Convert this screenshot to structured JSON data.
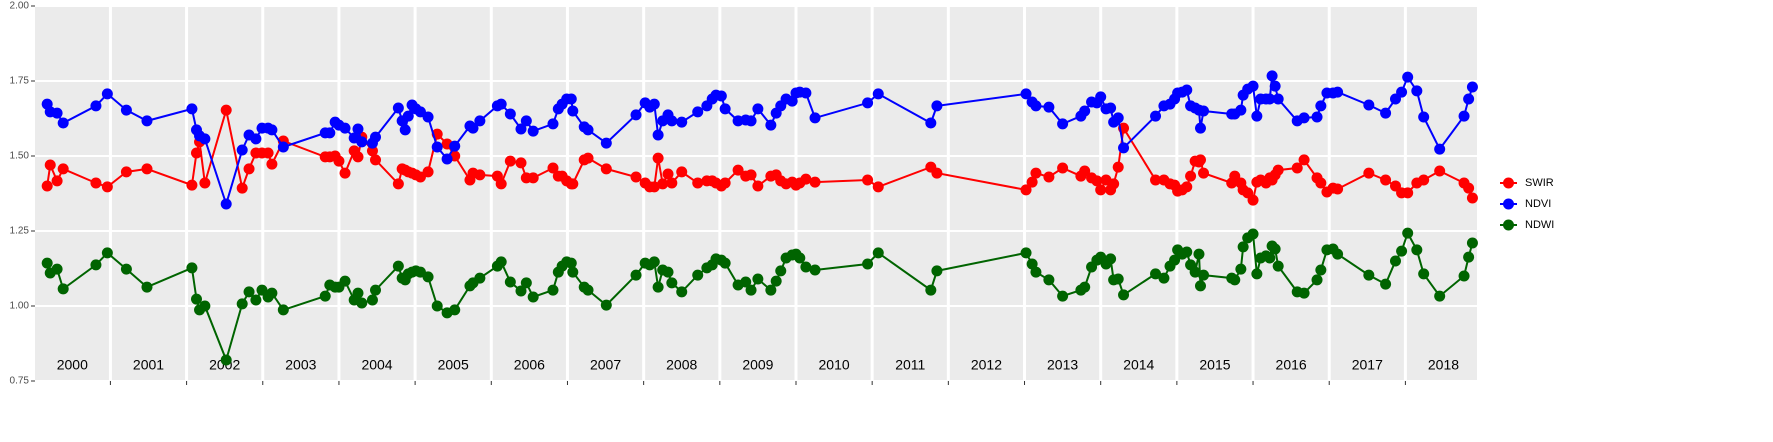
{
  "chart_data": {
    "type": "line",
    "x": [
      2000.17,
      2000.21,
      2000.3,
      2000.38,
      2000.81,
      2000.96,
      2001.21,
      2001.48,
      2002.07,
      2002.13,
      2002.17,
      2002.24,
      2002.52,
      2002.73,
      2002.82,
      2002.91,
      2002.99,
      2003.07,
      2003.12,
      2003.27,
      2003.82,
      2003.88,
      2003.95,
      2004.0,
      2004.08,
      2004.2,
      2004.25,
      2004.3,
      2004.44,
      2004.48,
      2004.78,
      2004.83,
      2004.87,
      2004.91,
      2004.96,
      2005.01,
      2005.07,
      2005.17,
      2005.29,
      2005.42,
      2005.52,
      2005.72,
      2005.76,
      2005.85,
      2006.08,
      2006.13,
      2006.25,
      2006.39,
      2006.46,
      2006.55,
      2006.81,
      2006.88,
      2006.93,
      2006.99,
      2007.05,
      2007.07,
      2007.22,
      2007.27,
      2007.51,
      2007.9,
      2008.02,
      2008.08,
      2008.14,
      2008.19,
      2008.25,
      2008.32,
      2008.37,
      2008.5,
      2008.71,
      2008.83,
      2008.9,
      2008.95,
      2009.02,
      2009.07,
      2009.24,
      2009.34,
      2009.41,
      2009.5,
      2009.67,
      2009.74,
      2009.8,
      2009.87,
      2009.95,
      2010.0,
      2010.05,
      2010.13,
      2010.25,
      2010.94,
      2011.08,
      2011.77,
      2011.85,
      2013.02,
      2013.1,
      2013.15,
      2013.32,
      2013.5,
      2013.74,
      2013.79,
      2013.88,
      2013.95,
      2014.0,
      2014.07,
      2014.13,
      2014.17,
      2014.23,
      2014.3,
      2014.72,
      2014.83,
      2014.91,
      2014.97,
      2015.01,
      2015.07,
      2015.13,
      2015.18,
      2015.24,
      2015.29,
      2015.31,
      2015.35,
      2015.72,
      2015.76,
      2015.84,
      2015.87,
      2015.93,
      2016.0,
      2016.05,
      2016.1,
      2016.17,
      2016.22,
      2016.25,
      2016.29,
      2016.33,
      2016.58,
      2016.67,
      2016.84,
      2016.89,
      2016.97,
      2017.05,
      2017.11,
      2017.52,
      2017.74,
      2017.87,
      2017.95,
      2018.03,
      2018.15,
      2018.24,
      2018.45,
      2018.77,
      2018.83,
      2018.88
    ],
    "series": [
      {
        "name": "SWIR",
        "color": "#ff0000",
        "values": [
          1.4,
          1.47,
          1.417,
          1.457,
          1.41,
          1.397,
          1.447,
          1.457,
          1.403,
          1.51,
          1.547,
          1.41,
          1.653,
          1.393,
          1.457,
          1.51,
          1.51,
          1.51,
          1.473,
          1.55,
          1.497,
          1.497,
          1.5,
          1.483,
          1.443,
          1.517,
          1.497,
          1.563,
          1.517,
          1.487,
          1.407,
          1.457,
          1.453,
          1.447,
          1.443,
          1.437,
          1.43,
          1.447,
          1.573,
          1.54,
          1.5,
          1.42,
          1.443,
          1.437,
          1.433,
          1.407,
          1.483,
          1.477,
          1.427,
          1.427,
          1.46,
          1.433,
          1.433,
          1.417,
          1.407,
          1.407,
          1.487,
          1.493,
          1.457,
          1.43,
          1.41,
          1.397,
          1.397,
          1.493,
          1.407,
          1.44,
          1.41,
          1.447,
          1.41,
          1.417,
          1.417,
          1.41,
          1.4,
          1.41,
          1.453,
          1.433,
          1.437,
          1.4,
          1.433,
          1.437,
          1.417,
          1.407,
          1.413,
          1.403,
          1.41,
          1.423,
          1.413,
          1.42,
          1.397,
          1.463,
          1.443,
          1.387,
          1.413,
          1.443,
          1.43,
          1.46,
          1.433,
          1.45,
          1.427,
          1.417,
          1.387,
          1.42,
          1.387,
          1.407,
          1.463,
          1.593,
          1.42,
          1.42,
          1.407,
          1.403,
          1.383,
          1.387,
          1.397,
          1.433,
          1.483,
          1.48,
          1.487,
          1.443,
          1.41,
          1.433,
          1.41,
          1.387,
          1.377,
          1.353,
          1.413,
          1.42,
          1.41,
          1.427,
          1.42,
          1.437,
          1.453,
          1.46,
          1.487,
          1.427,
          1.41,
          1.38,
          1.393,
          1.39,
          1.443,
          1.42,
          1.4,
          1.377,
          1.377,
          1.41,
          1.42,
          1.45,
          1.41,
          1.393,
          1.36
        ]
      },
      {
        "name": "NDVI",
        "color": "#0000ff",
        "values": [
          1.673,
          1.647,
          1.643,
          1.61,
          1.667,
          1.707,
          1.653,
          1.617,
          1.657,
          1.587,
          1.567,
          1.557,
          1.34,
          1.52,
          1.57,
          1.557,
          1.593,
          1.593,
          1.587,
          1.53,
          1.577,
          1.577,
          1.613,
          1.603,
          1.593,
          1.56,
          1.59,
          1.547,
          1.543,
          1.563,
          1.66,
          1.617,
          1.587,
          1.633,
          1.67,
          1.657,
          1.647,
          1.63,
          1.53,
          1.49,
          1.533,
          1.6,
          1.593,
          1.617,
          1.667,
          1.673,
          1.64,
          1.59,
          1.617,
          1.583,
          1.607,
          1.657,
          1.673,
          1.69,
          1.69,
          1.65,
          1.597,
          1.587,
          1.543,
          1.637,
          1.677,
          1.663,
          1.673,
          1.57,
          1.617,
          1.637,
          1.617,
          1.613,
          1.647,
          1.667,
          1.69,
          1.703,
          1.7,
          1.657,
          1.617,
          1.62,
          1.617,
          1.657,
          1.603,
          1.643,
          1.667,
          1.69,
          1.683,
          1.71,
          1.713,
          1.71,
          1.627,
          1.677,
          1.707,
          1.61,
          1.667,
          1.707,
          1.68,
          1.667,
          1.663,
          1.607,
          1.633,
          1.65,
          1.68,
          1.677,
          1.697,
          1.657,
          1.66,
          1.613,
          1.627,
          1.527,
          1.633,
          1.667,
          1.673,
          1.69,
          1.71,
          1.713,
          1.72,
          1.667,
          1.66,
          1.653,
          1.593,
          1.65,
          1.64,
          1.64,
          1.653,
          1.703,
          1.723,
          1.733,
          1.633,
          1.69,
          1.69,
          1.69,
          1.767,
          1.733,
          1.69,
          1.617,
          1.627,
          1.63,
          1.667,
          1.71,
          1.71,
          1.713,
          1.67,
          1.643,
          1.69,
          1.713,
          1.763,
          1.717,
          1.63,
          1.523,
          1.633,
          1.69,
          1.73
        ]
      },
      {
        "name": "NDWI",
        "color": "#006400",
        "values": [
          1.143,
          1.11,
          1.123,
          1.057,
          1.137,
          1.177,
          1.123,
          1.063,
          1.127,
          1.023,
          0.987,
          1.0,
          0.82,
          1.007,
          1.047,
          1.02,
          1.053,
          1.03,
          1.043,
          0.987,
          1.033,
          1.07,
          1.063,
          1.063,
          1.083,
          1.02,
          1.043,
          1.01,
          1.02,
          1.053,
          1.133,
          1.093,
          1.087,
          1.107,
          1.113,
          1.117,
          1.113,
          1.097,
          1.0,
          0.977,
          0.987,
          1.067,
          1.077,
          1.093,
          1.133,
          1.147,
          1.08,
          1.05,
          1.077,
          1.03,
          1.053,
          1.113,
          1.133,
          1.147,
          1.143,
          1.113,
          1.063,
          1.053,
          1.003,
          1.103,
          1.143,
          1.137,
          1.147,
          1.063,
          1.12,
          1.113,
          1.077,
          1.047,
          1.103,
          1.127,
          1.137,
          1.157,
          1.153,
          1.143,
          1.07,
          1.08,
          1.053,
          1.09,
          1.053,
          1.083,
          1.117,
          1.16,
          1.17,
          1.173,
          1.16,
          1.13,
          1.12,
          1.14,
          1.177,
          1.053,
          1.117,
          1.177,
          1.14,
          1.113,
          1.087,
          1.033,
          1.053,
          1.063,
          1.13,
          1.153,
          1.163,
          1.14,
          1.157,
          1.087,
          1.09,
          1.037,
          1.107,
          1.093,
          1.133,
          1.153,
          1.187,
          1.173,
          1.18,
          1.137,
          1.113,
          1.173,
          1.067,
          1.103,
          1.093,
          1.087,
          1.123,
          1.197,
          1.227,
          1.24,
          1.107,
          1.16,
          1.167,
          1.16,
          1.2,
          1.19,
          1.133,
          1.047,
          1.043,
          1.087,
          1.12,
          1.187,
          1.19,
          1.173,
          1.103,
          1.073,
          1.15,
          1.183,
          1.243,
          1.187,
          1.107,
          1.033,
          1.1,
          1.163,
          1.21
        ]
      }
    ],
    "xlim": [
      2000.01,
      2018.94
    ],
    "ylim": [
      0.75,
      2.0
    ],
    "yticks": [
      0.75,
      {
        "value": 1.0,
        "label": "1.00"
      },
      1.25,
      {
        "value": 1.5,
        "label": "1.50"
      },
      1.75,
      {
        "value": 2.0,
        "label": "2.00"
      }
    ],
    "year_boundaries": [
      2001,
      2002,
      2003,
      2004,
      2005,
      2006,
      2007,
      2008,
      2009,
      2010,
      2011,
      2012,
      2013,
      2014,
      2015,
      2016,
      2017,
      2018
    ],
    "year_labels": [
      {
        "value": 2000.5,
        "label": "2000"
      },
      {
        "value": 2001.5,
        "label": "2001"
      },
      {
        "value": 2002.5,
        "label": "2002"
      },
      {
        "value": 2003.5,
        "label": "2003"
      },
      {
        "value": 2004.5,
        "label": "2004"
      },
      {
        "value": 2005.5,
        "label": "2005"
      },
      {
        "value": 2006.5,
        "label": "2006"
      },
      {
        "value": 2007.5,
        "label": "2007"
      },
      {
        "value": 2008.5,
        "label": "2008"
      },
      {
        "value": 2009.5,
        "label": "2009"
      },
      {
        "value": 2010.5,
        "label": "2010"
      },
      {
        "value": 2011.5,
        "label": "2011"
      },
      {
        "value": 2012.5,
        "label": "2012"
      },
      {
        "value": 2013.5,
        "label": "2013"
      },
      {
        "value": 2014.5,
        "label": "2014"
      },
      {
        "value": 2015.5,
        "label": "2015"
      },
      {
        "value": 2016.5,
        "label": "2016"
      },
      {
        "value": 2017.5,
        "label": "2017"
      },
      {
        "value": 2018.5,
        "label": "2018"
      }
    ],
    "grid": true,
    "legend": "right"
  }
}
